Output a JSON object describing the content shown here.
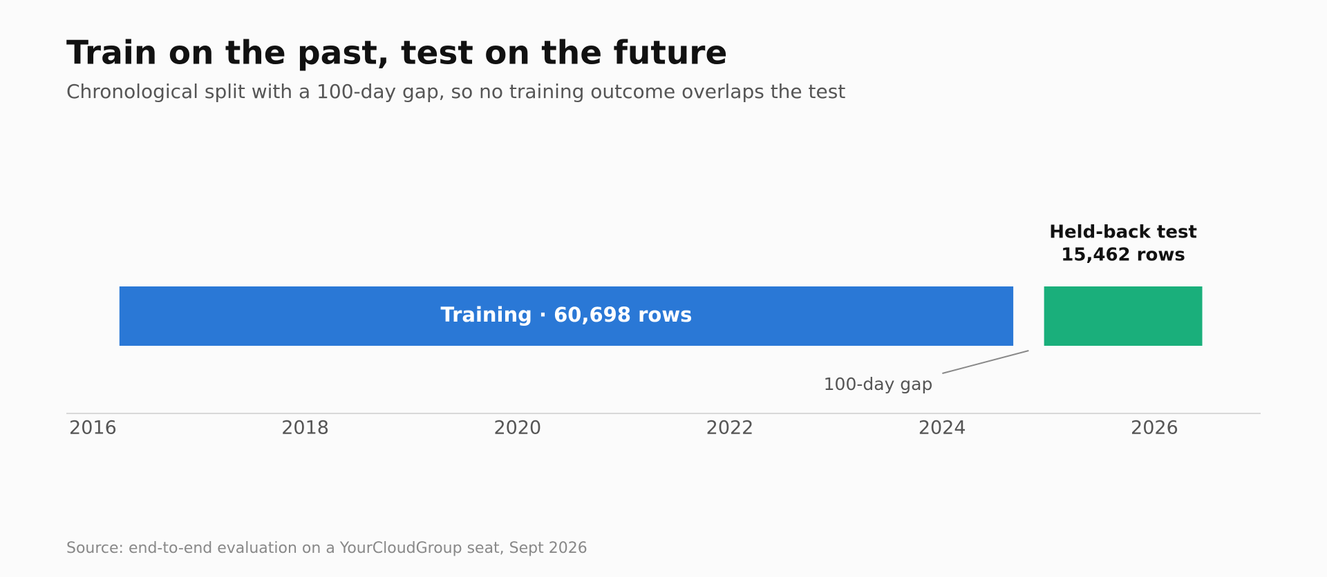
{
  "chart_data": {
    "type": "timeline",
    "title": "Train on the past, test on the future",
    "subtitle": "Chronological split with a 100-day gap, so no training outcome overlaps the test",
    "source": "Source: end-to-end evaluation on a YourCloudGroup seat, Sept 2026",
    "xlim": [
      2015.75,
      2027.0
    ],
    "xticks": [
      2016,
      2018,
      2020,
      2022,
      2024,
      2026
    ],
    "series": [
      {
        "label": [
          "Training · 60,698 rows"
        ],
        "label_position": "inside",
        "color": "#2a78d6",
        "start": 2016.25,
        "end": 2024.67
      },
      {
        "label": [
          "Held-back test",
          "15,462 rows"
        ],
        "label_position": "above",
        "color": "#1aaf7b",
        "start": 2024.96,
        "end": 2026.45
      }
    ],
    "gap_annotation": "100-day gap"
  }
}
